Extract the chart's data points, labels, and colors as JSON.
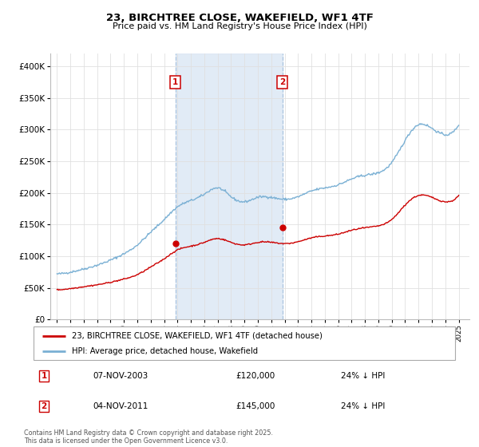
{
  "title1": "23, BIRCHTREE CLOSE, WAKEFIELD, WF1 4TF",
  "title2": "Price paid vs. HM Land Registry's House Price Index (HPI)",
  "ylim": [
    0,
    420000
  ],
  "yticks": [
    0,
    50000,
    100000,
    150000,
    200000,
    250000,
    300000,
    350000,
    400000
  ],
  "ytick_labels": [
    "£0",
    "£50K",
    "£100K",
    "£150K",
    "£200K",
    "£250K",
    "£300K",
    "£350K",
    "£400K"
  ],
  "grid_color": "#e0e0e0",
  "line1_color": "#cc0000",
  "line2_color": "#7ab0d4",
  "sale1_date": "07-NOV-2003",
  "sale1_price": "£120,000",
  "sale1_pct": "24% ↓ HPI",
  "sale2_date": "04-NOV-2011",
  "sale2_price": "£145,000",
  "sale2_pct": "24% ↓ HPI",
  "legend1": "23, BIRCHTREE CLOSE, WAKEFIELD, WF1 4TF (detached house)",
  "legend2": "HPI: Average price, detached house, Wakefield",
  "footnote": "Contains HM Land Registry data © Crown copyright and database right 2025.\nThis data is licensed under the Open Government Licence v3.0.",
  "sale1_x": 2003.85,
  "sale2_x": 2011.84,
  "xlim": [
    1994.5,
    2025.8
  ],
  "hpi_years": [
    1995,
    1996,
    1997,
    1998,
    1999,
    2000,
    2001,
    2002,
    2003,
    2004,
    2005,
    2006,
    2007,
    2008,
    2009,
    2010,
    2011,
    2012,
    2013,
    2014,
    2015,
    2016,
    2017,
    2018,
    2019,
    2020,
    2021,
    2022,
    2023,
    2024,
    2025
  ],
  "hpi_values": [
    72000,
    75000,
    80000,
    86000,
    94000,
    104000,
    118000,
    138000,
    158000,
    178000,
    188000,
    198000,
    208000,
    194000,
    186000,
    193000,
    193000,
    190000,
    194000,
    203000,
    208000,
    213000,
    222000,
    228000,
    232000,
    248000,
    283000,
    308000,
    302000,
    292000,
    308000
  ],
  "red_years": [
    1995,
    1996,
    1997,
    1998,
    1999,
    2000,
    2001,
    2002,
    2003,
    2004,
    2005,
    2006,
    2007,
    2008,
    2009,
    2010,
    2011,
    2012,
    2013,
    2014,
    2015,
    2016,
    2017,
    2018,
    2019,
    2020,
    2021,
    2022,
    2023,
    2024,
    2025
  ],
  "red_values": [
    47000,
    49000,
    52000,
    55000,
    59000,
    64000,
    71000,
    83000,
    96000,
    110000,
    116000,
    122000,
    128000,
    122000,
    118000,
    122000,
    122000,
    120000,
    123000,
    129000,
    132000,
    135000,
    141000,
    145000,
    148000,
    158000,
    181000,
    196000,
    193000,
    186000,
    196000
  ]
}
